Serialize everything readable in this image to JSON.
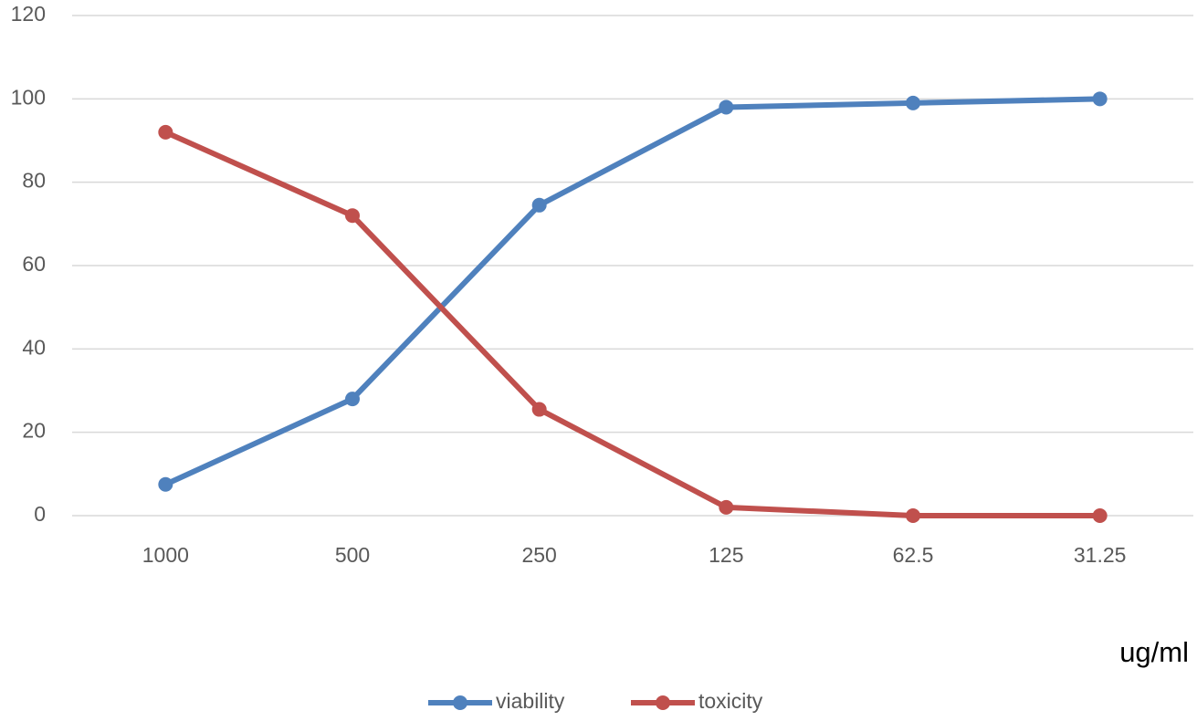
{
  "chart_data": {
    "type": "line",
    "x_label": "ug/ml",
    "categories": [
      "1000",
      "500",
      "250",
      "125",
      "62.5",
      "31.25"
    ],
    "series": [
      {
        "name": "viability",
        "color": "#4f81bd",
        "values": [
          7.5,
          28,
          74.5,
          98,
          99,
          100
        ]
      },
      {
        "name": "toxicity",
        "color": "#c0504d",
        "values": [
          92,
          72,
          25.5,
          2,
          0,
          0
        ]
      }
    ],
    "ylim": [
      0,
      120
    ],
    "yticks": [
      0,
      20,
      40,
      60,
      80,
      100,
      120
    ],
    "grid": true,
    "legend": "bottom"
  }
}
